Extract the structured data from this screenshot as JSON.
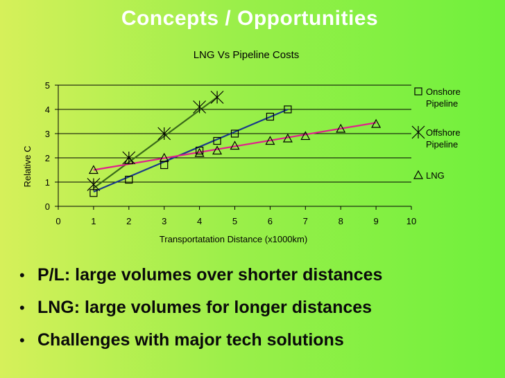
{
  "slide": {
    "title": "Concepts / Opportunities",
    "bullets": [
      "P/L: large volumes over shorter distances",
      "LNG: large volumes for longer distances",
      "Challenges with major tech solutions"
    ]
  },
  "chart_data": {
    "type": "scatter",
    "title": "LNG Vs Pipeline Costs",
    "xlabel": "Transportatation Distance (x1000km)",
    "ylabel": "Relative C",
    "xlim": [
      0,
      10
    ],
    "ylim": [
      0,
      5
    ],
    "xticks": [
      "0",
      "1",
      "2",
      "3",
      "4",
      "5",
      "6",
      "7",
      "8",
      "9",
      "10"
    ],
    "yticks": [
      "0",
      "1",
      "2",
      "3",
      "4",
      "5"
    ],
    "grid": "horizontal",
    "legend_position": "right",
    "series": [
      {
        "name": "Onshore Pipeline",
        "marker": "square",
        "color": "#1a3a8a",
        "trendline": {
          "x": [
            1,
            6.5
          ],
          "y": [
            0.6,
            4.0
          ]
        },
        "points": [
          [
            1,
            0.55
          ],
          [
            2,
            1.1
          ],
          [
            3,
            1.7
          ],
          [
            4,
            2.3
          ],
          [
            4.5,
            2.7
          ],
          [
            5,
            3.0
          ],
          [
            6,
            3.7
          ],
          [
            6.5,
            4.0
          ]
        ]
      },
      {
        "name": "Offshore Pipeline",
        "marker": "star",
        "color": "#3a6a1a",
        "trendline": {
          "x": [
            1,
            4.5
          ],
          "y": [
            0.75,
            4.5
          ]
        },
        "points": [
          [
            1,
            0.9
          ],
          [
            2,
            2.0
          ],
          [
            3,
            3.0
          ],
          [
            4,
            4.1
          ],
          [
            4.5,
            4.5
          ]
        ]
      },
      {
        "name": "LNG",
        "marker": "triangle",
        "color": "#e0208c",
        "trendline": {
          "x": [
            1,
            9
          ],
          "y": [
            1.5,
            3.45
          ]
        },
        "points": [
          [
            1,
            1.5
          ],
          [
            2,
            1.9
          ],
          [
            3,
            2.0
          ],
          [
            4,
            2.2
          ],
          [
            4.5,
            2.3
          ],
          [
            5,
            2.5
          ],
          [
            6,
            2.7
          ],
          [
            6.5,
            2.8
          ],
          [
            7,
            2.9
          ],
          [
            8,
            3.2
          ],
          [
            9,
            3.4
          ]
        ]
      }
    ]
  }
}
